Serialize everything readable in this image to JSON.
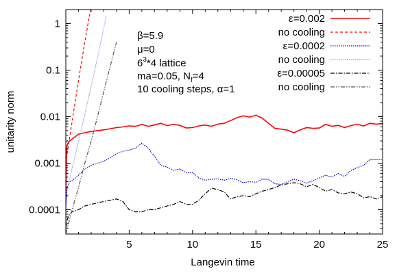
{
  "chart_data": {
    "type": "line",
    "xlabel": "Langevin time",
    "ylabel": "unitarity norm",
    "xlim": [
      0,
      25
    ],
    "ylim": [
      3e-05,
      2
    ],
    "log_y": true,
    "grid": false,
    "legend_placement": "top-right",
    "x_ticks": [
      "5",
      "10",
      "15",
      "20",
      "25"
    ],
    "y_ticks": [
      {
        "value": 1,
        "label": "1"
      },
      {
        "value": 0.1,
        "label": "0.1"
      },
      {
        "value": 0.01,
        "label": "0.01"
      },
      {
        "value": 0.001,
        "label": "0.001"
      },
      {
        "value": 0.0001,
        "label": "0.0001"
      }
    ],
    "annotations": {
      "beta": "β=5.9",
      "mu": "μ=0",
      "lattice_base": "6",
      "lattice_exp": "3",
      "lattice_rest": "*4 lattice",
      "mass_base": "ma=0.05, N",
      "mass_sub": "f",
      "mass_rest": "=4",
      "cooling": "10 cooling steps, α=1"
    },
    "series": [
      {
        "name": "ε=0.002",
        "color": "#ff0000",
        "style": "solid",
        "x": [
          0.0,
          0.05,
          0.1,
          0.2,
          0.3,
          0.5,
          0.8,
          1.0,
          1.5,
          2.0,
          2.5,
          3.0,
          3.5,
          4.0,
          4.5,
          5.0,
          5.5,
          6.0,
          6.5,
          7.0,
          7.5,
          8.0,
          8.5,
          9.0,
          9.5,
          10.0,
          10.5,
          11.0,
          11.5,
          12.0,
          12.5,
          13.0,
          13.5,
          14.0,
          14.5,
          15.0,
          15.5,
          16.0,
          16.5,
          17.0,
          17.5,
          18.0,
          18.5,
          19.0,
          19.5,
          20.0,
          20.5,
          21.0,
          21.5,
          22.0,
          22.5,
          23.0,
          23.5,
          24.0,
          24.5,
          25.0
        ],
        "values": [
          0.0002,
          0.0015,
          0.0024,
          0.0028,
          0.003,
          0.0033,
          0.0038,
          0.0042,
          0.0045,
          0.0048,
          0.005,
          0.0052,
          0.0055,
          0.0058,
          0.006,
          0.0063,
          0.0062,
          0.0068,
          0.0062,
          0.0066,
          0.0072,
          0.0064,
          0.0068,
          0.0065,
          0.0057,
          0.0058,
          0.0063,
          0.0066,
          0.0062,
          0.0069,
          0.0072,
          0.0082,
          0.0095,
          0.0104,
          0.0098,
          0.0107,
          0.0093,
          0.0072,
          0.0056,
          0.0054,
          0.0051,
          0.0045,
          0.0052,
          0.0058,
          0.0056,
          0.0057,
          0.0068,
          0.0062,
          0.0065,
          0.0058,
          0.0064,
          0.0069,
          0.0063,
          0.0072,
          0.0069,
          0.0071
        ]
      },
      {
        "name": "no cooling",
        "color": "#ff0000",
        "style": "dashed",
        "x": [
          0.0,
          0.3,
          0.6,
          0.9,
          1.2,
          1.5,
          1.8,
          2.1
        ],
        "values": [
          0.001,
          0.0035,
          0.012,
          0.04,
          0.13,
          0.4,
          1.2,
          3.0
        ]
      },
      {
        "name": "ε=0.0002",
        "color": "#0000cc",
        "style": "dotted",
        "x": [
          0.0,
          0.1,
          0.3,
          0.5,
          1.0,
          1.5,
          2.0,
          2.5,
          3.0,
          3.5,
          4.0,
          4.5,
          5.0,
          5.5,
          6.0,
          6.5,
          7.0,
          7.5,
          8.0,
          8.5,
          9.0,
          9.5,
          10.0,
          10.5,
          11.0,
          11.5,
          12.0,
          12.5,
          13.0,
          13.5,
          14.0,
          14.5,
          15.0,
          15.5,
          16.0,
          16.5,
          17.0,
          17.5,
          18.0,
          18.5,
          19.0,
          19.5,
          20.0,
          20.5,
          21.0,
          21.5,
          22.0,
          22.5,
          23.0,
          23.5,
          24.0,
          24.5,
          25.0
        ],
        "values": [
          0.0001,
          0.0003,
          0.0004,
          0.00042,
          0.00055,
          0.00075,
          0.0009,
          0.001,
          0.0011,
          0.0013,
          0.0016,
          0.0018,
          0.0019,
          0.0021,
          0.0027,
          0.0021,
          0.0014,
          0.0009,
          0.00082,
          0.0007,
          0.00075,
          0.00062,
          0.00063,
          0.00048,
          0.00043,
          0.00045,
          0.00046,
          0.00043,
          0.00047,
          0.00044,
          0.00038,
          0.0004,
          0.00039,
          0.00045,
          0.00045,
          0.00036,
          0.00035,
          0.0004,
          0.00045,
          0.00042,
          0.00037,
          0.00042,
          0.00048,
          0.00055,
          0.0005,
          0.0006,
          0.00052,
          0.0007,
          0.0008,
          0.0009,
          0.0012,
          0.0012,
          0.0012
        ]
      },
      {
        "name": "no cooling",
        "color": "#8c8cff",
        "style": "dotted",
        "x": [
          0.0,
          0.4,
          0.8,
          1.2,
          1.6,
          2.0,
          2.4,
          2.8,
          3.2
        ],
        "values": [
          0.0002,
          0.0006,
          0.0017,
          0.005,
          0.015,
          0.045,
          0.14,
          0.45,
          1.5
        ]
      },
      {
        "name": "ε=0.00005",
        "color": "#000000",
        "style": "dashdot",
        "x": [
          0.0,
          0.1,
          0.3,
          0.5,
          1.0,
          1.5,
          2.0,
          2.5,
          3.0,
          3.5,
          4.0,
          4.5,
          5.0,
          5.5,
          6.0,
          6.5,
          7.0,
          7.5,
          8.0,
          8.5,
          9.0,
          9.5,
          10.0,
          10.5,
          11.0,
          11.5,
          12.0,
          12.5,
          13.0,
          13.5,
          14.0,
          14.5,
          15.0,
          15.5,
          16.0,
          16.5,
          17.0,
          17.5,
          18.0,
          18.5,
          19.0,
          19.5,
          20.0,
          20.5,
          21.0,
          21.5,
          22.0,
          22.5,
          23.0,
          23.5,
          24.0,
          24.5,
          25.0
        ],
        "values": [
          4e-05,
          6e-05,
          8e-05,
          9e-05,
          0.0001,
          0.00012,
          0.00013,
          0.00014,
          0.00015,
          0.00016,
          0.00017,
          0.00015,
          0.0001,
          9e-05,
          9e-05,
          0.0001,
          0.0001,
          0.00011,
          0.00012,
          0.00013,
          0.00015,
          0.00013,
          0.00013,
          0.00016,
          0.00022,
          0.00029,
          0.00027,
          0.00024,
          0.00017,
          0.00019,
          0.0002,
          0.00019,
          0.00022,
          0.00025,
          0.00027,
          0.0003,
          0.00034,
          0.00036,
          0.00038,
          0.00036,
          0.00031,
          0.00035,
          0.0003,
          0.00025,
          0.00027,
          0.00023,
          0.00022,
          0.00024,
          0.00022,
          0.00018,
          0.00019,
          0.00017,
          0.00019
        ]
      },
      {
        "name": "no cooling",
        "color": "#555555",
        "style": "dashdotdot",
        "x": [
          0.0,
          0.5,
          1.0,
          1.5,
          2.0,
          2.5,
          3.0,
          3.5,
          4.0
        ],
        "values": [
          3e-05,
          0.0001,
          0.0003,
          0.001,
          0.003,
          0.01,
          0.035,
          0.12,
          0.4
        ]
      }
    ]
  }
}
